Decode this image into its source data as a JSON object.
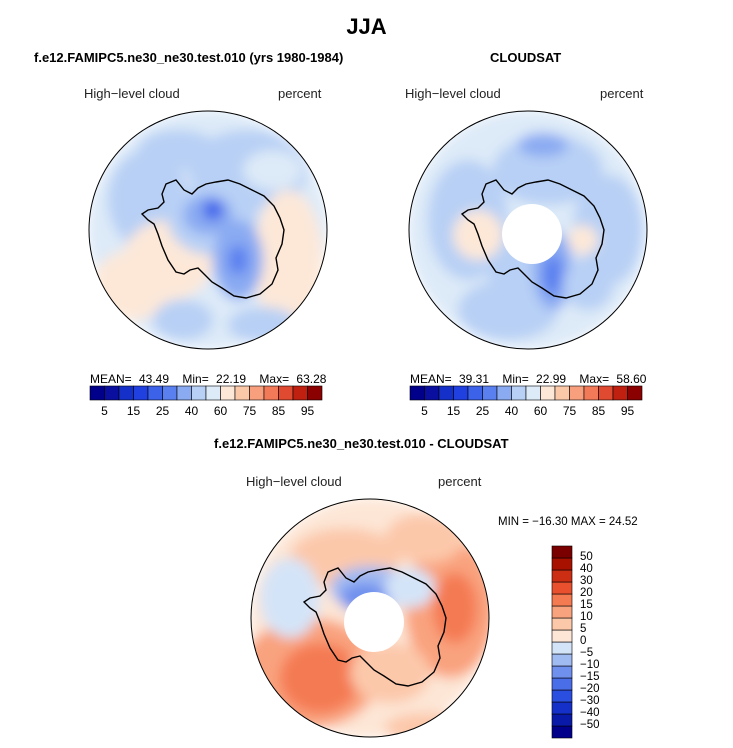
{
  "main_title": "JJA",
  "panels": [
    {
      "title": "f.e12.FAMIPC5.ne30_ne30.test.010 (yrs 1980-1984)",
      "left_label": "High−level cloud",
      "right_label": "percent",
      "stats": {
        "mean_label": "MEAN=",
        "mean": "43.49",
        "min_label": "Min=",
        "min": "22.19",
        "max_label": "Max=",
        "max": "63.28"
      }
    },
    {
      "title": "CLOUDSAT",
      "left_label": "High−level cloud",
      "right_label": "percent",
      "stats": {
        "mean_label": "MEAN=",
        "mean": "39.31",
        "min_label": "Min=",
        "min": "22.99",
        "max_label": "Max=",
        "max": "58.60"
      }
    },
    {
      "title": "f.e12.FAMIPC5.ne30_ne30.test.010 - CLOUDSAT",
      "left_label": "High−level cloud",
      "right_label": "percent",
      "stats_text": "MIN = −16.30 MAX =  24.52"
    }
  ],
  "chart_data": [
    {
      "type": "heatmap",
      "projection": "south-polar-stereographic",
      "title": "f.e12.FAMIPC5.ne30_ne30.test.010 (yrs 1980-1984)",
      "variable": "High-level cloud",
      "units": "percent",
      "mean": 43.49,
      "min": 22.19,
      "max": 63.28,
      "colorbar": {
        "levels": [
          5,
          10,
          15,
          20,
          25,
          30,
          40,
          50,
          60,
          70,
          75,
          80,
          85,
          90,
          95
        ],
        "tick_labels": [
          "5",
          "15",
          "25",
          "40",
          "60",
          "75",
          "85",
          "95"
        ],
        "colors": [
          "#00008b",
          "#0a0fa0",
          "#1430c8",
          "#2040e0",
          "#3c62ea",
          "#5a80f0",
          "#8aaaf2",
          "#b8d0f5",
          "#ddeaf8",
          "#fde8d8",
          "#fcc9a8",
          "#f8a07e",
          "#f27a58",
          "#e04a30",
          "#c02010",
          "#8b0000"
        ]
      }
    },
    {
      "type": "heatmap",
      "projection": "south-polar-stereographic",
      "title": "CLOUDSAT",
      "variable": "High-level cloud",
      "units": "percent",
      "mean": 39.31,
      "min": 22.99,
      "max": 58.6,
      "colorbar": {
        "levels": [
          5,
          10,
          15,
          20,
          25,
          30,
          40,
          50,
          60,
          70,
          75,
          80,
          85,
          90,
          95
        ],
        "tick_labels": [
          "5",
          "15",
          "25",
          "40",
          "60",
          "75",
          "85",
          "95"
        ],
        "colors": [
          "#00008b",
          "#0a0fa0",
          "#1430c8",
          "#2040e0",
          "#3c62ea",
          "#5a80f0",
          "#8aaaf2",
          "#b8d0f5",
          "#ddeaf8",
          "#fde8d8",
          "#fcc9a8",
          "#f8a07e",
          "#f27a58",
          "#e04a30",
          "#c02010",
          "#8b0000"
        ]
      }
    },
    {
      "type": "heatmap",
      "projection": "south-polar-stereographic",
      "title": "f.e12.FAMIPC5.ne30_ne30.test.010 - CLOUDSAT",
      "variable": "High-level cloud",
      "units": "percent",
      "min": -16.3,
      "max": 24.52,
      "colorbar": {
        "levels": [
          -50,
          -40,
          -30,
          -20,
          -15,
          -10,
          -5,
          0,
          5,
          10,
          15,
          20,
          30,
          40,
          50
        ],
        "tick_labels": [
          "−50",
          "−40",
          "−30",
          "−20",
          "−15",
          "−10",
          "−5",
          "0",
          "5",
          "10",
          "15",
          "20",
          "30",
          "40",
          "50"
        ],
        "colors": [
          "#00008b",
          "#0a1aa8",
          "#1430c8",
          "#2a4ee0",
          "#4a6ee8",
          "#7090ee",
          "#a0baf2",
          "#d4e4f8",
          "#fde6d6",
          "#fcc8aa",
          "#f9a27e",
          "#f47a52",
          "#e8502e",
          "#cc2e14",
          "#a81000",
          "#7a0000"
        ]
      }
    }
  ]
}
